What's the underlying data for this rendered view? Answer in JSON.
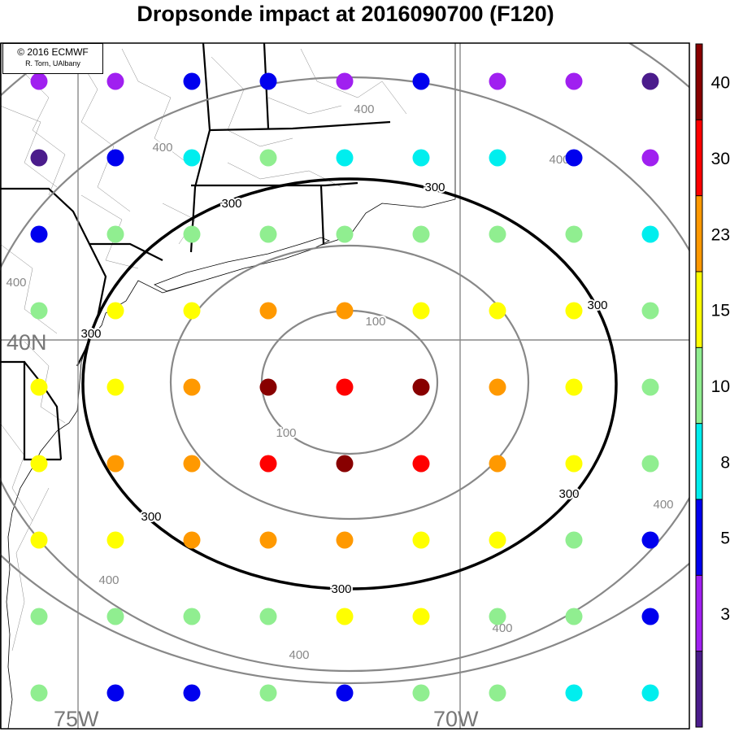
{
  "title": "Dropsonde impact at 2016090700 (F120)",
  "credit": {
    "line1": "© 2016 ECMWF",
    "line2": "R. Torn, UAlbany"
  },
  "grid_labels": {
    "lat_40": "40N",
    "lon_75": "75W",
    "lon_70": "70W"
  },
  "contour_labels": {
    "c100": "100",
    "c300": "300",
    "c400": "400"
  },
  "colorbar": {
    "colors": [
      "#4b1c8c",
      "#a020f0",
      "#0000ee",
      "#00eeee",
      "#90ee90",
      "#ffff00",
      "#ff9900",
      "#ff0000",
      "#880000"
    ],
    "tick_labels": [
      "3",
      "5",
      "8",
      "10",
      "15",
      "23",
      "30",
      "40"
    ]
  },
  "dot_rows": [
    [
      1,
      1,
      2,
      2,
      1,
      2,
      1,
      1,
      0
    ],
    [
      0,
      2,
      3,
      4,
      3,
      3,
      3,
      2,
      1
    ],
    [
      2,
      4,
      4,
      4,
      4,
      4,
      4,
      4,
      3
    ],
    [
      4,
      5,
      5,
      6,
      6,
      5,
      5,
      5,
      4
    ],
    [
      5,
      5,
      6,
      8,
      7,
      8,
      6,
      5,
      4
    ],
    [
      5,
      6,
      6,
      7,
      8,
      7,
      6,
      5,
      4
    ],
    [
      5,
      5,
      6,
      6,
      6,
      5,
      5,
      4,
      2
    ],
    [
      4,
      4,
      4,
      4,
      5,
      5,
      4,
      4,
      2
    ],
    [
      4,
      2,
      2,
      4,
      2,
      4,
      4,
      3,
      3
    ]
  ]
}
